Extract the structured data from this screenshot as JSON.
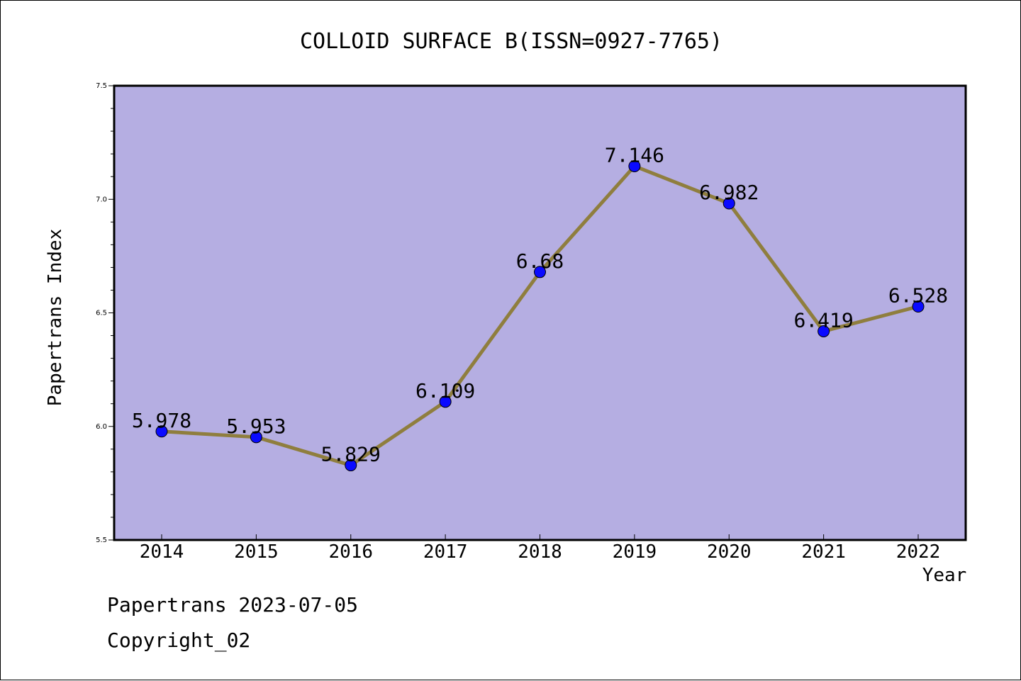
{
  "chart_data": {
    "type": "line",
    "title": "COLLOID SURFACE B(ISSN=0927-7765)",
    "xlabel": "Year",
    "ylabel": "Papertrans Index",
    "categories": [
      "2014",
      "2015",
      "2016",
      "2017",
      "2018",
      "2019",
      "2020",
      "2021",
      "2022"
    ],
    "values": [
      5.978,
      5.953,
      5.829,
      6.109,
      6.68,
      7.146,
      6.982,
      6.419,
      6.528
    ],
    "value_labels": [
      "5.978",
      "5.953",
      "5.829",
      "6.109",
      "6.68",
      "7.146",
      "6.982",
      "6.419",
      "6.528"
    ],
    "ylim": [
      5.5,
      7.5
    ],
    "yticks": [
      "5.5",
      "6.0",
      "6.5",
      "7.0",
      "7.5"
    ],
    "grid": false,
    "colors": {
      "plot_background": "#b5aee2",
      "line": "#8f7e3e",
      "marker": "#0a0aff"
    }
  },
  "footer": {
    "line1": "Papertrans 2023-07-05",
    "line2": "Copyright_02"
  }
}
